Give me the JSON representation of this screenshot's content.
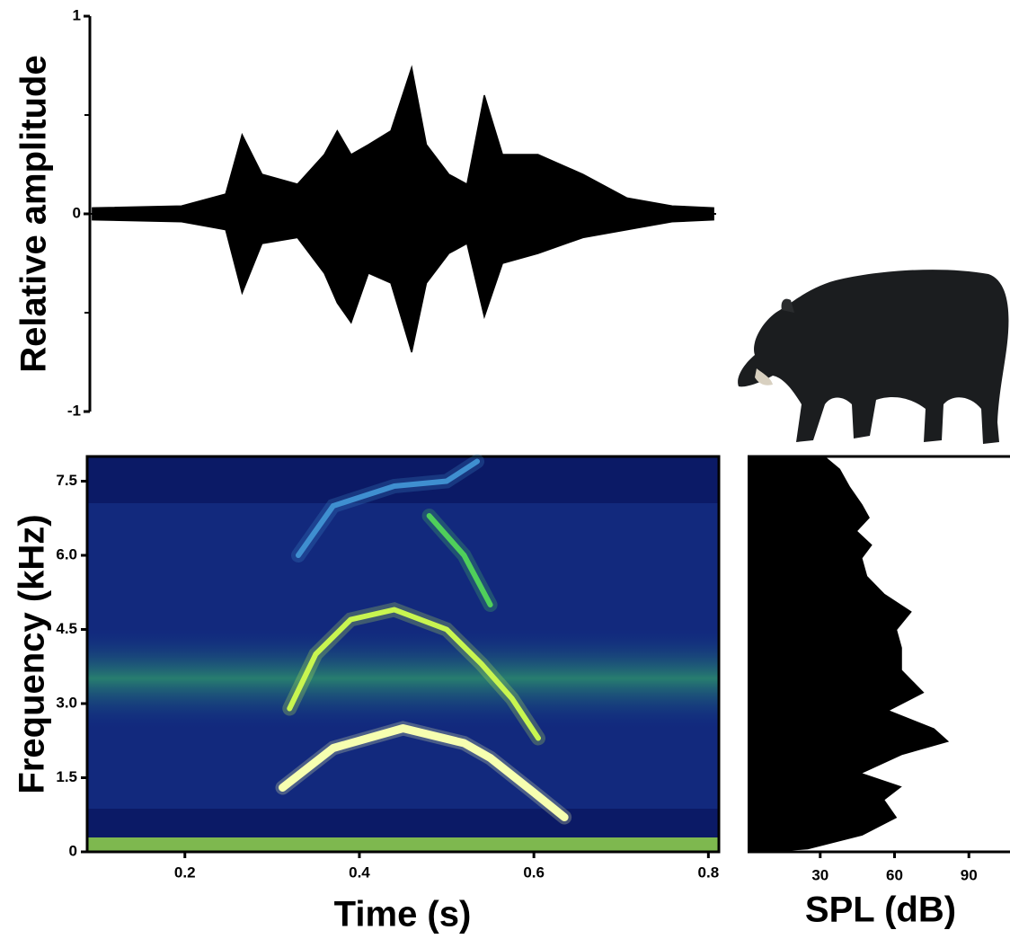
{
  "chart_data": [
    {
      "type": "waveform",
      "ylabel": "Relative amplitude",
      "x": [
        0.091,
        0.194,
        0.245,
        0.264,
        0.287,
        0.328,
        0.359,
        0.374,
        0.39,
        0.41,
        0.436,
        0.46,
        0.477,
        0.503,
        0.524,
        0.544,
        0.565,
        0.606,
        0.658,
        0.709,
        0.761,
        0.809
      ],
      "upper": [
        0.03,
        0.04,
        0.1,
        0.4,
        0.2,
        0.15,
        0.3,
        0.42,
        0.3,
        0.35,
        0.42,
        0.74,
        0.35,
        0.2,
        0.15,
        0.6,
        0.3,
        0.3,
        0.2,
        0.08,
        0.04,
        0.03
      ],
      "lower": [
        -0.03,
        -0.04,
        -0.08,
        -0.4,
        -0.15,
        -0.12,
        -0.3,
        -0.45,
        -0.55,
        -0.3,
        -0.35,
        -0.7,
        -0.35,
        -0.2,
        -0.15,
        -0.52,
        -0.25,
        -0.2,
        -0.12,
        -0.08,
        -0.04,
        -0.03
      ],
      "color": "#000000",
      "xlim": [
        0.088,
        0.812
      ],
      "ylim": [
        -1,
        1
      ],
      "yticks": [
        -1,
        0,
        1
      ],
      "yminorticks": [
        -0.5,
        0.5
      ]
    },
    {
      "type": "spectrogram",
      "xlabel": "Time (s)",
      "ylabel": "Frequency (kHz)",
      "xlim": [
        0.088,
        0.812
      ],
      "ylim": [
        0,
        8
      ],
      "xticks": [
        0.2,
        0.4,
        0.6,
        0.8
      ],
      "yticks": [
        0,
        1.5,
        {
          "value": 3,
          "label": "3.0"
        },
        4.5,
        {
          "value": 6,
          "label": "6.0"
        },
        7.5
      ],
      "series": [
        {
          "color": "#f6ffb0",
          "x": [
            0.312,
            0.37,
            0.45,
            0.52,
            0.55,
            0.6,
            0.635
          ],
          "values": [
            1.3,
            2.1,
            2.5,
            2.2,
            1.9,
            1.2,
            0.7
          ]
        },
        {
          "color": "#c8f550",
          "x": [
            0.32,
            0.35,
            0.39,
            0.44,
            0.5,
            0.54,
            0.575,
            0.605
          ],
          "values": [
            2.9,
            4.0,
            4.7,
            4.9,
            4.5,
            3.8,
            3.1,
            2.3
          ]
        },
        {
          "color": "#4fcf5a",
          "x": [
            0.48,
            0.52,
            0.55
          ],
          "values": [
            6.8,
            6.0,
            5.0
          ]
        },
        {
          "color": "#3f8fd0",
          "x": [
            0.33,
            0.37,
            0.44,
            0.5,
            0.535
          ],
          "values": [
            6.0,
            7.0,
            7.4,
            7.5,
            7.9
          ]
        }
      ]
    },
    {
      "type": "area",
      "xlabel": "SPL (dB)",
      "color": "#000000",
      "xlim": [
        0.7,
        106.6
      ],
      "ylim": [
        0,
        8
      ],
      "xticks": [
        30,
        60,
        90
      ],
      "y": [
        8.0,
        7.75,
        7.39,
        7.03,
        6.76,
        6.49,
        6.21,
        5.94,
        5.58,
        5.22,
        4.86,
        4.49,
        4.13,
        3.68,
        3.22,
        2.86,
        2.5,
        2.23,
        1.96,
        1.59,
        1.32,
        1.05,
        0.69,
        0.33,
        0.05,
        0
      ],
      "values": [
        32,
        38,
        42,
        47,
        50,
        45,
        51,
        47,
        49,
        56,
        67,
        61,
        63,
        63,
        72,
        58,
        76,
        82,
        63,
        47,
        63,
        56,
        61,
        47,
        25,
        11
      ]
    }
  ]
}
